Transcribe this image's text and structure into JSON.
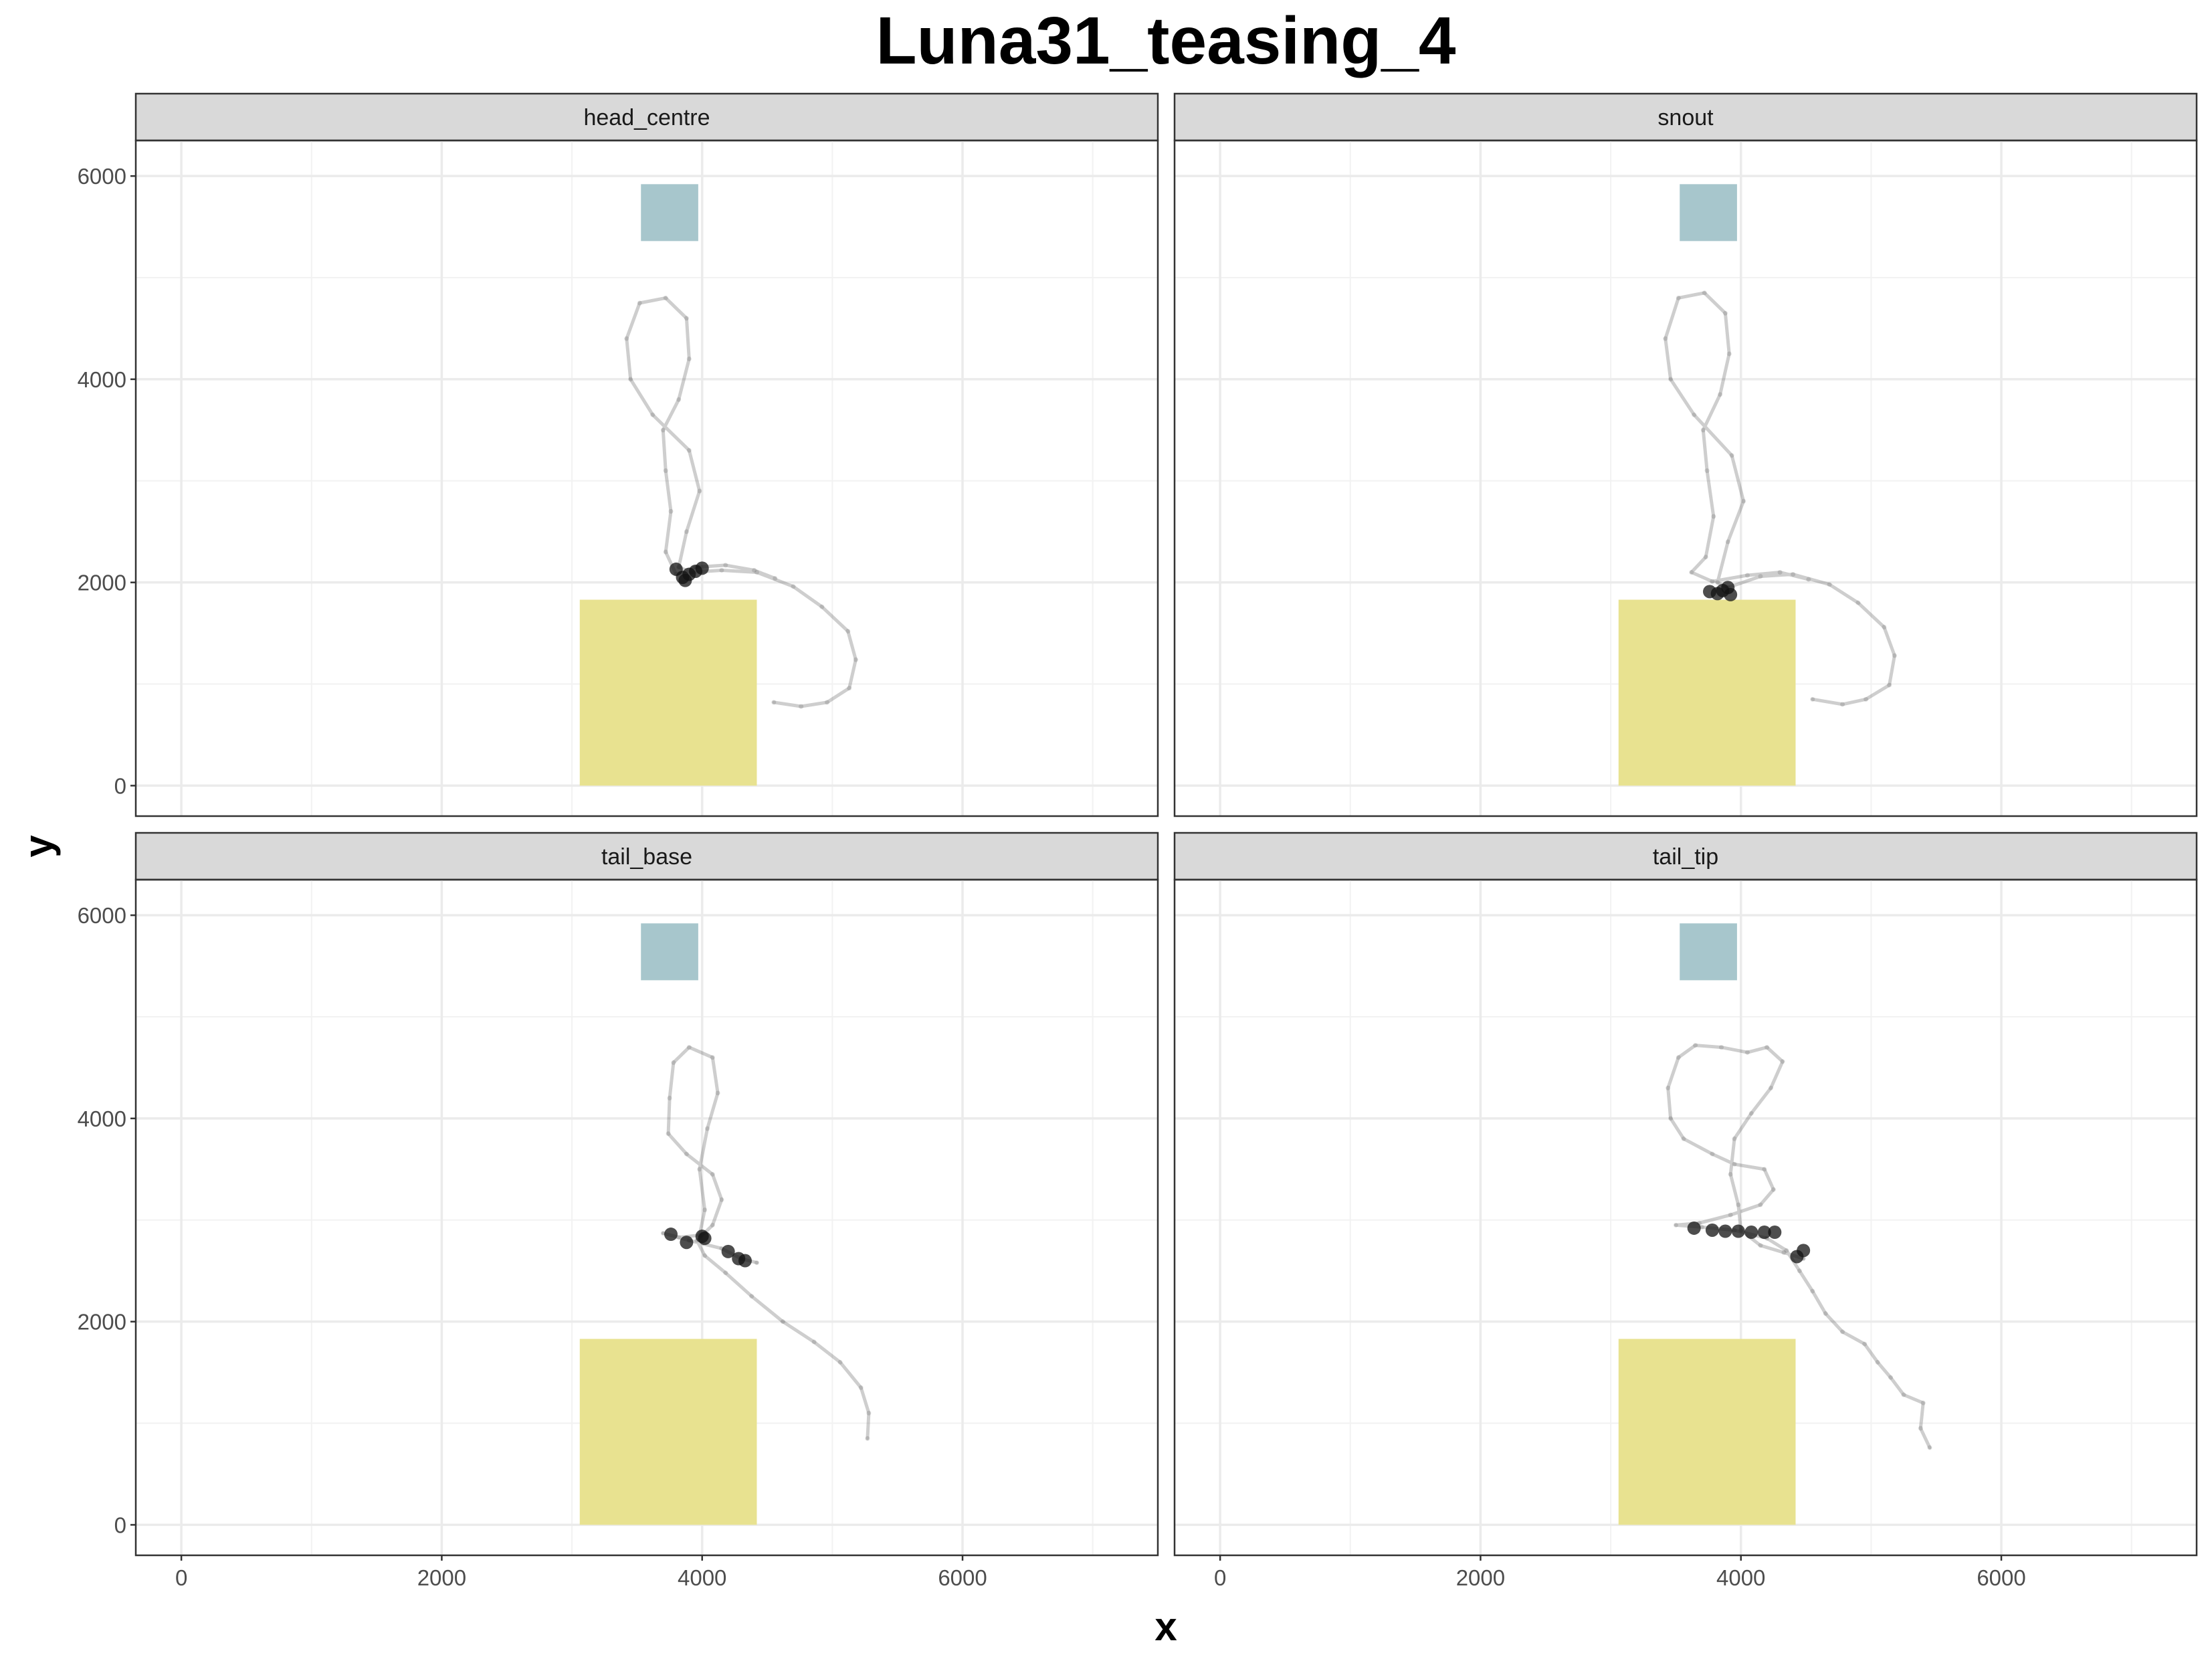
{
  "chart_data": {
    "type": "scatter",
    "title": "Luna31_teasing_4",
    "xlabel": "x",
    "ylabel": "y",
    "xlim": [
      -350,
      7500
    ],
    "ylim": [
      -300,
      6350
    ],
    "x_ticks": [
      0,
      2000,
      4000,
      6000
    ],
    "y_ticks": [
      0,
      2000,
      4000,
      6000
    ],
    "grid": true,
    "regions": [
      {
        "name": "blue-zone",
        "x": [
          3530,
          3970
        ],
        "y": [
          5360,
          5920
        ],
        "color": "#a7c6cc"
      },
      {
        "name": "yellow-zone",
        "x": [
          3060,
          4420
        ],
        "y": [
          0,
          1830
        ],
        "color": "#e8e290"
      }
    ],
    "panels": [
      {
        "label": "head_centre",
        "track": [
          [
            4550,
            820
          ],
          [
            4760,
            780
          ],
          [
            4960,
            820
          ],
          [
            5130,
            960
          ],
          [
            5180,
            1240
          ],
          [
            5120,
            1520
          ],
          [
            4920,
            1760
          ],
          [
            4700,
            1960
          ],
          [
            4420,
            2100
          ],
          [
            4150,
            2120
          ],
          [
            3920,
            2100
          ],
          [
            3820,
            2150
          ],
          [
            3880,
            2500
          ],
          [
            3980,
            2900
          ],
          [
            3900,
            3300
          ],
          [
            3620,
            3650
          ],
          [
            3450,
            4000
          ],
          [
            3420,
            4400
          ],
          [
            3520,
            4750
          ],
          [
            3720,
            4800
          ],
          [
            3880,
            4600
          ],
          [
            3900,
            4200
          ],
          [
            3820,
            3800
          ],
          [
            3700,
            3500
          ],
          [
            3720,
            3100
          ],
          [
            3760,
            2700
          ],
          [
            3720,
            2300
          ],
          [
            3800,
            2080
          ],
          [
            3950,
            2150
          ],
          [
            4180,
            2170
          ],
          [
            4400,
            2120
          ],
          [
            4560,
            2040
          ]
        ],
        "clusters": [
          [
            3850,
            2050
          ],
          [
            3900,
            2080
          ],
          [
            3950,
            2110
          ],
          [
            3800,
            2130
          ],
          [
            4000,
            2140
          ],
          [
            3870,
            2020
          ]
        ]
      },
      {
        "label": "snout",
        "track": [
          [
            4550,
            850
          ],
          [
            4780,
            800
          ],
          [
            4960,
            850
          ],
          [
            5140,
            990
          ],
          [
            5180,
            1280
          ],
          [
            5100,
            1560
          ],
          [
            4900,
            1800
          ],
          [
            4680,
            1980
          ],
          [
            4400,
            2080
          ],
          [
            4150,
            2060
          ],
          [
            3900,
            1950
          ],
          [
            3820,
            2000
          ],
          [
            3900,
            2400
          ],
          [
            4020,
            2800
          ],
          [
            3930,
            3250
          ],
          [
            3640,
            3650
          ],
          [
            3460,
            4000
          ],
          [
            3420,
            4400
          ],
          [
            3520,
            4800
          ],
          [
            3720,
            4850
          ],
          [
            3880,
            4650
          ],
          [
            3910,
            4250
          ],
          [
            3840,
            3850
          ],
          [
            3710,
            3500
          ],
          [
            3740,
            3100
          ],
          [
            3790,
            2650
          ],
          [
            3730,
            2250
          ],
          [
            3620,
            2100
          ],
          [
            3780,
            2010
          ],
          [
            4050,
            2070
          ],
          [
            4300,
            2100
          ],
          [
            4520,
            2030
          ]
        ],
        "clusters": [
          [
            3820,
            1890
          ],
          [
            3860,
            1920
          ],
          [
            3900,
            1950
          ],
          [
            3760,
            1910
          ],
          [
            3920,
            1880
          ]
        ]
      },
      {
        "label": "tail_base",
        "track": [
          [
            5270,
            850
          ],
          [
            5280,
            1100
          ],
          [
            5220,
            1350
          ],
          [
            5060,
            1600
          ],
          [
            4860,
            1800
          ],
          [
            4620,
            2000
          ],
          [
            4380,
            2250
          ],
          [
            4180,
            2480
          ],
          [
            4020,
            2650
          ],
          [
            3960,
            2800
          ],
          [
            4080,
            2950
          ],
          [
            4150,
            3200
          ],
          [
            4080,
            3450
          ],
          [
            3880,
            3650
          ],
          [
            3740,
            3850
          ],
          [
            3750,
            4200
          ],
          [
            3780,
            4550
          ],
          [
            3900,
            4700
          ],
          [
            4080,
            4600
          ],
          [
            4120,
            4250
          ],
          [
            4040,
            3900
          ],
          [
            3980,
            3500
          ],
          [
            4020,
            3100
          ],
          [
            3980,
            2850
          ],
          [
            3820,
            2830
          ],
          [
            3700,
            2870
          ],
          [
            3900,
            2800
          ],
          [
            4150,
            2720
          ],
          [
            4300,
            2620
          ],
          [
            4420,
            2580
          ]
        ],
        "clusters": [
          [
            3760,
            2860
          ],
          [
            4000,
            2840
          ],
          [
            4020,
            2820
          ],
          [
            3880,
            2780
          ],
          [
            4200,
            2690
          ],
          [
            4280,
            2620
          ],
          [
            4330,
            2600
          ]
        ]
      },
      {
        "label": "tail_tip",
        "track": [
          [
            5450,
            760
          ],
          [
            5380,
            950
          ],
          [
            5400,
            1200
          ],
          [
            5250,
            1280
          ],
          [
            5150,
            1450
          ],
          [
            5050,
            1600
          ],
          [
            4950,
            1780
          ],
          [
            4780,
            1900
          ],
          [
            4650,
            2080
          ],
          [
            4550,
            2300
          ],
          [
            4450,
            2500
          ],
          [
            4350,
            2700
          ],
          [
            4200,
            2820
          ],
          [
            3950,
            2900
          ],
          [
            3700,
            2930
          ],
          [
            3500,
            2950
          ],
          [
            3680,
            2970
          ],
          [
            3920,
            3050
          ],
          [
            4150,
            3150
          ],
          [
            4250,
            3300
          ],
          [
            4180,
            3500
          ],
          [
            3950,
            3550
          ],
          [
            3780,
            3650
          ],
          [
            3560,
            3800
          ],
          [
            3460,
            4000
          ],
          [
            3440,
            4300
          ],
          [
            3520,
            4600
          ],
          [
            3650,
            4720
          ],
          [
            3850,
            4700
          ],
          [
            4050,
            4650
          ],
          [
            4200,
            4700
          ],
          [
            4320,
            4560
          ],
          [
            4230,
            4300
          ],
          [
            4080,
            4050
          ],
          [
            3950,
            3800
          ],
          [
            3920,
            3450
          ],
          [
            3980,
            3150
          ],
          [
            4000,
            2900
          ],
          [
            4150,
            2750
          ],
          [
            4330,
            2680
          ],
          [
            4480,
            2620
          ]
        ],
        "clusters": [
          [
            3780,
            2900
          ],
          [
            3880,
            2890
          ],
          [
            3980,
            2890
          ],
          [
            4080,
            2880
          ],
          [
            4180,
            2880
          ],
          [
            4260,
            2880
          ],
          [
            3640,
            2920
          ],
          [
            4430,
            2640
          ],
          [
            4480,
            2700
          ]
        ]
      }
    ]
  }
}
